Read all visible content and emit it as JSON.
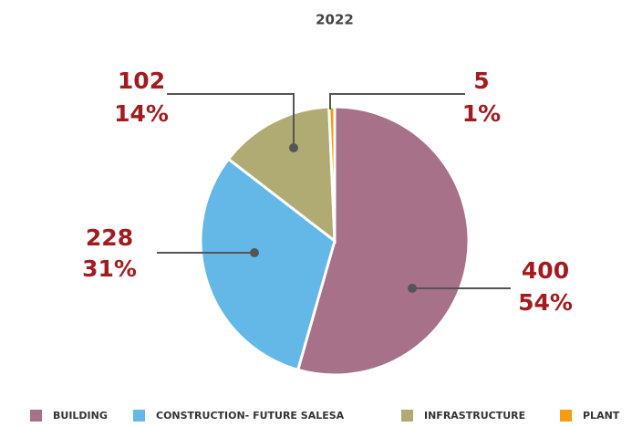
{
  "chart_data": {
    "type": "pie",
    "title": "2022",
    "categories": [
      "BUILDING",
      "CONSTRUCTION- FUTURE SALESA",
      "INFRASTRUCTURE",
      "PLANT"
    ],
    "values": [
      400,
      228,
      102,
      5
    ],
    "percent_labels": [
      "54%",
      "31%",
      "14%",
      "1%"
    ],
    "colors": [
      "#a67189",
      "#63b8e8",
      "#b0ab72",
      "#f39c12"
    ],
    "legend": "bottom"
  }
}
